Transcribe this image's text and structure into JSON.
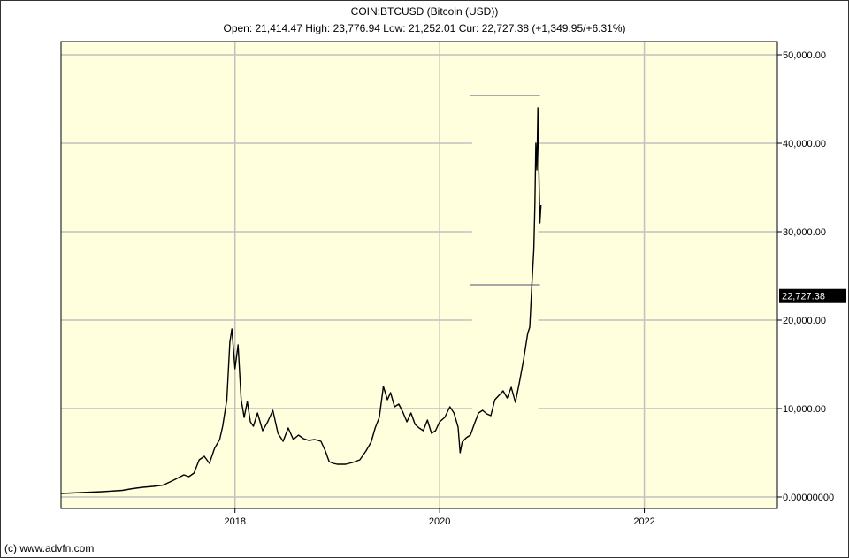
{
  "header": {
    "title": "COIN:BTCUSD (Bitcoin (USD))",
    "quote": "Open: 21,414.47 High: 23,776.94 Low: 21,252.01 Cur: 22,727.38 (+1,349.95/+6.31%)"
  },
  "footer": {
    "copyright": "(c) www.advfn.com"
  },
  "chart_data": {
    "type": "line",
    "title": "COIN:BTCUSD (Bitcoin (USD))",
    "xlabel": "",
    "ylabel": "",
    "xlim": [
      2016.3,
      2023.3
    ],
    "ylim": [
      -1300,
      51500
    ],
    "x_ticks": [
      {
        "value": 2018,
        "label": "2018"
      },
      {
        "value": 2020,
        "label": "2020"
      },
      {
        "value": 2022,
        "label": "2022"
      }
    ],
    "y_ticks": [
      {
        "value": 0,
        "label": "0.00000000"
      },
      {
        "value": 10000,
        "label": "10,000.00"
      },
      {
        "value": 20000,
        "label": "20,000.00"
      },
      {
        "value": 30000,
        "label": "30,000.00"
      },
      {
        "value": 40000,
        "label": "40,000.00"
      },
      {
        "value": 50000,
        "label": "50,000.00"
      }
    ],
    "current_value": {
      "value": 22727.38,
      "label": "22,727.38"
    },
    "grid": true,
    "colors": {
      "plot_bg": "#ffffdd",
      "line": "#000000",
      "grid": "#c0c0c0",
      "marker_bg": "#000000",
      "marker_text": "#ffffff"
    },
    "annotation_lines": [
      {
        "x_start": 2020.3,
        "x_end": 2020.98,
        "y": 45400
      },
      {
        "x_start": 2020.3,
        "x_end": 2020.98,
        "y": 24000
      }
    ],
    "series": [
      {
        "x": [
          2016.3,
          2016.5,
          2016.7,
          2016.9,
          2017.0,
          2017.1,
          2017.2,
          2017.3,
          2017.4,
          2017.5,
          2017.55,
          2017.6,
          2017.65,
          2017.7,
          2017.75,
          2017.8,
          2017.85,
          2017.88,
          2017.92,
          2017.95,
          2017.97,
          2018.0,
          2018.03,
          2018.06,
          2018.09,
          2018.12,
          2018.15,
          2018.18,
          2018.22,
          2018.27,
          2018.32,
          2018.37,
          2018.42,
          2018.47,
          2018.52,
          2018.57,
          2018.62,
          2018.67,
          2018.72,
          2018.78,
          2018.84,
          2018.88,
          2018.92,
          2018.96,
          2019.0,
          2019.08,
          2019.15,
          2019.22,
          2019.28,
          2019.33,
          2019.37,
          2019.41,
          2019.45,
          2019.49,
          2019.52,
          2019.56,
          2019.6,
          2019.64,
          2019.68,
          2019.72,
          2019.76,
          2019.8,
          2019.84,
          2019.88,
          2019.92,
          2019.96,
          2020.0,
          2020.05,
          2020.1,
          2020.14,
          2020.18,
          2020.2,
          2020.22,
          2020.26,
          2020.3,
          2020.34,
          2020.38,
          2020.42,
          2020.46,
          2020.5,
          2020.54,
          2020.58,
          2020.62,
          2020.66,
          2020.7,
          2020.74,
          2020.78,
          2020.82,
          2020.86,
          2020.88,
          2020.9,
          2020.92,
          2020.93,
          2020.94,
          2020.95,
          2020.96,
          2020.97,
          2020.98,
          2020.99
        ],
        "values": [
          400,
          500,
          600,
          750,
          950,
          1100,
          1200,
          1350,
          1900,
          2500,
          2300,
          2700,
          4200,
          4600,
          3800,
          5500,
          6500,
          8000,
          11000,
          17500,
          19000,
          14500,
          17200,
          11000,
          9000,
          10800,
          8500,
          8000,
          9500,
          7500,
          8500,
          9800,
          7200,
          6300,
          7800,
          6500,
          7000,
          6600,
          6400,
          6500,
          6300,
          5300,
          4000,
          3800,
          3700,
          3700,
          3900,
          4200,
          5200,
          6200,
          7800,
          9000,
          12500,
          11000,
          11800,
          10200,
          10500,
          9600,
          8500,
          9500,
          8200,
          7800,
          7500,
          8700,
          7200,
          7500,
          8500,
          9000,
          10200,
          9500,
          7900,
          5000,
          6200,
          6700,
          7000,
          8300,
          9500,
          9800,
          9400,
          9200,
          11000,
          11500,
          12000,
          11200,
          12400,
          10700,
          13000,
          15500,
          18500,
          19200,
          23800,
          28000,
          33000,
          40000,
          37000,
          44000,
          36500,
          31000,
          33000
        ]
      }
    ]
  }
}
